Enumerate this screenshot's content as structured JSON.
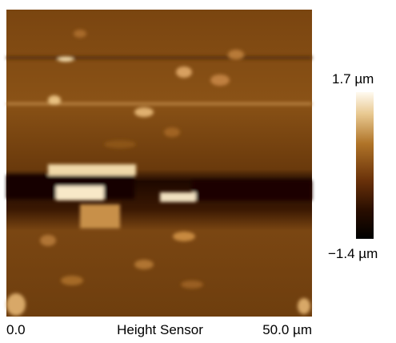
{
  "colorbar": {
    "max_label": "1.7 µm",
    "min_label": "−1.4 µm"
  },
  "axis": {
    "start_label": "0.0",
    "title": "Height Sensor",
    "end_label": "50.0 µm"
  }
}
